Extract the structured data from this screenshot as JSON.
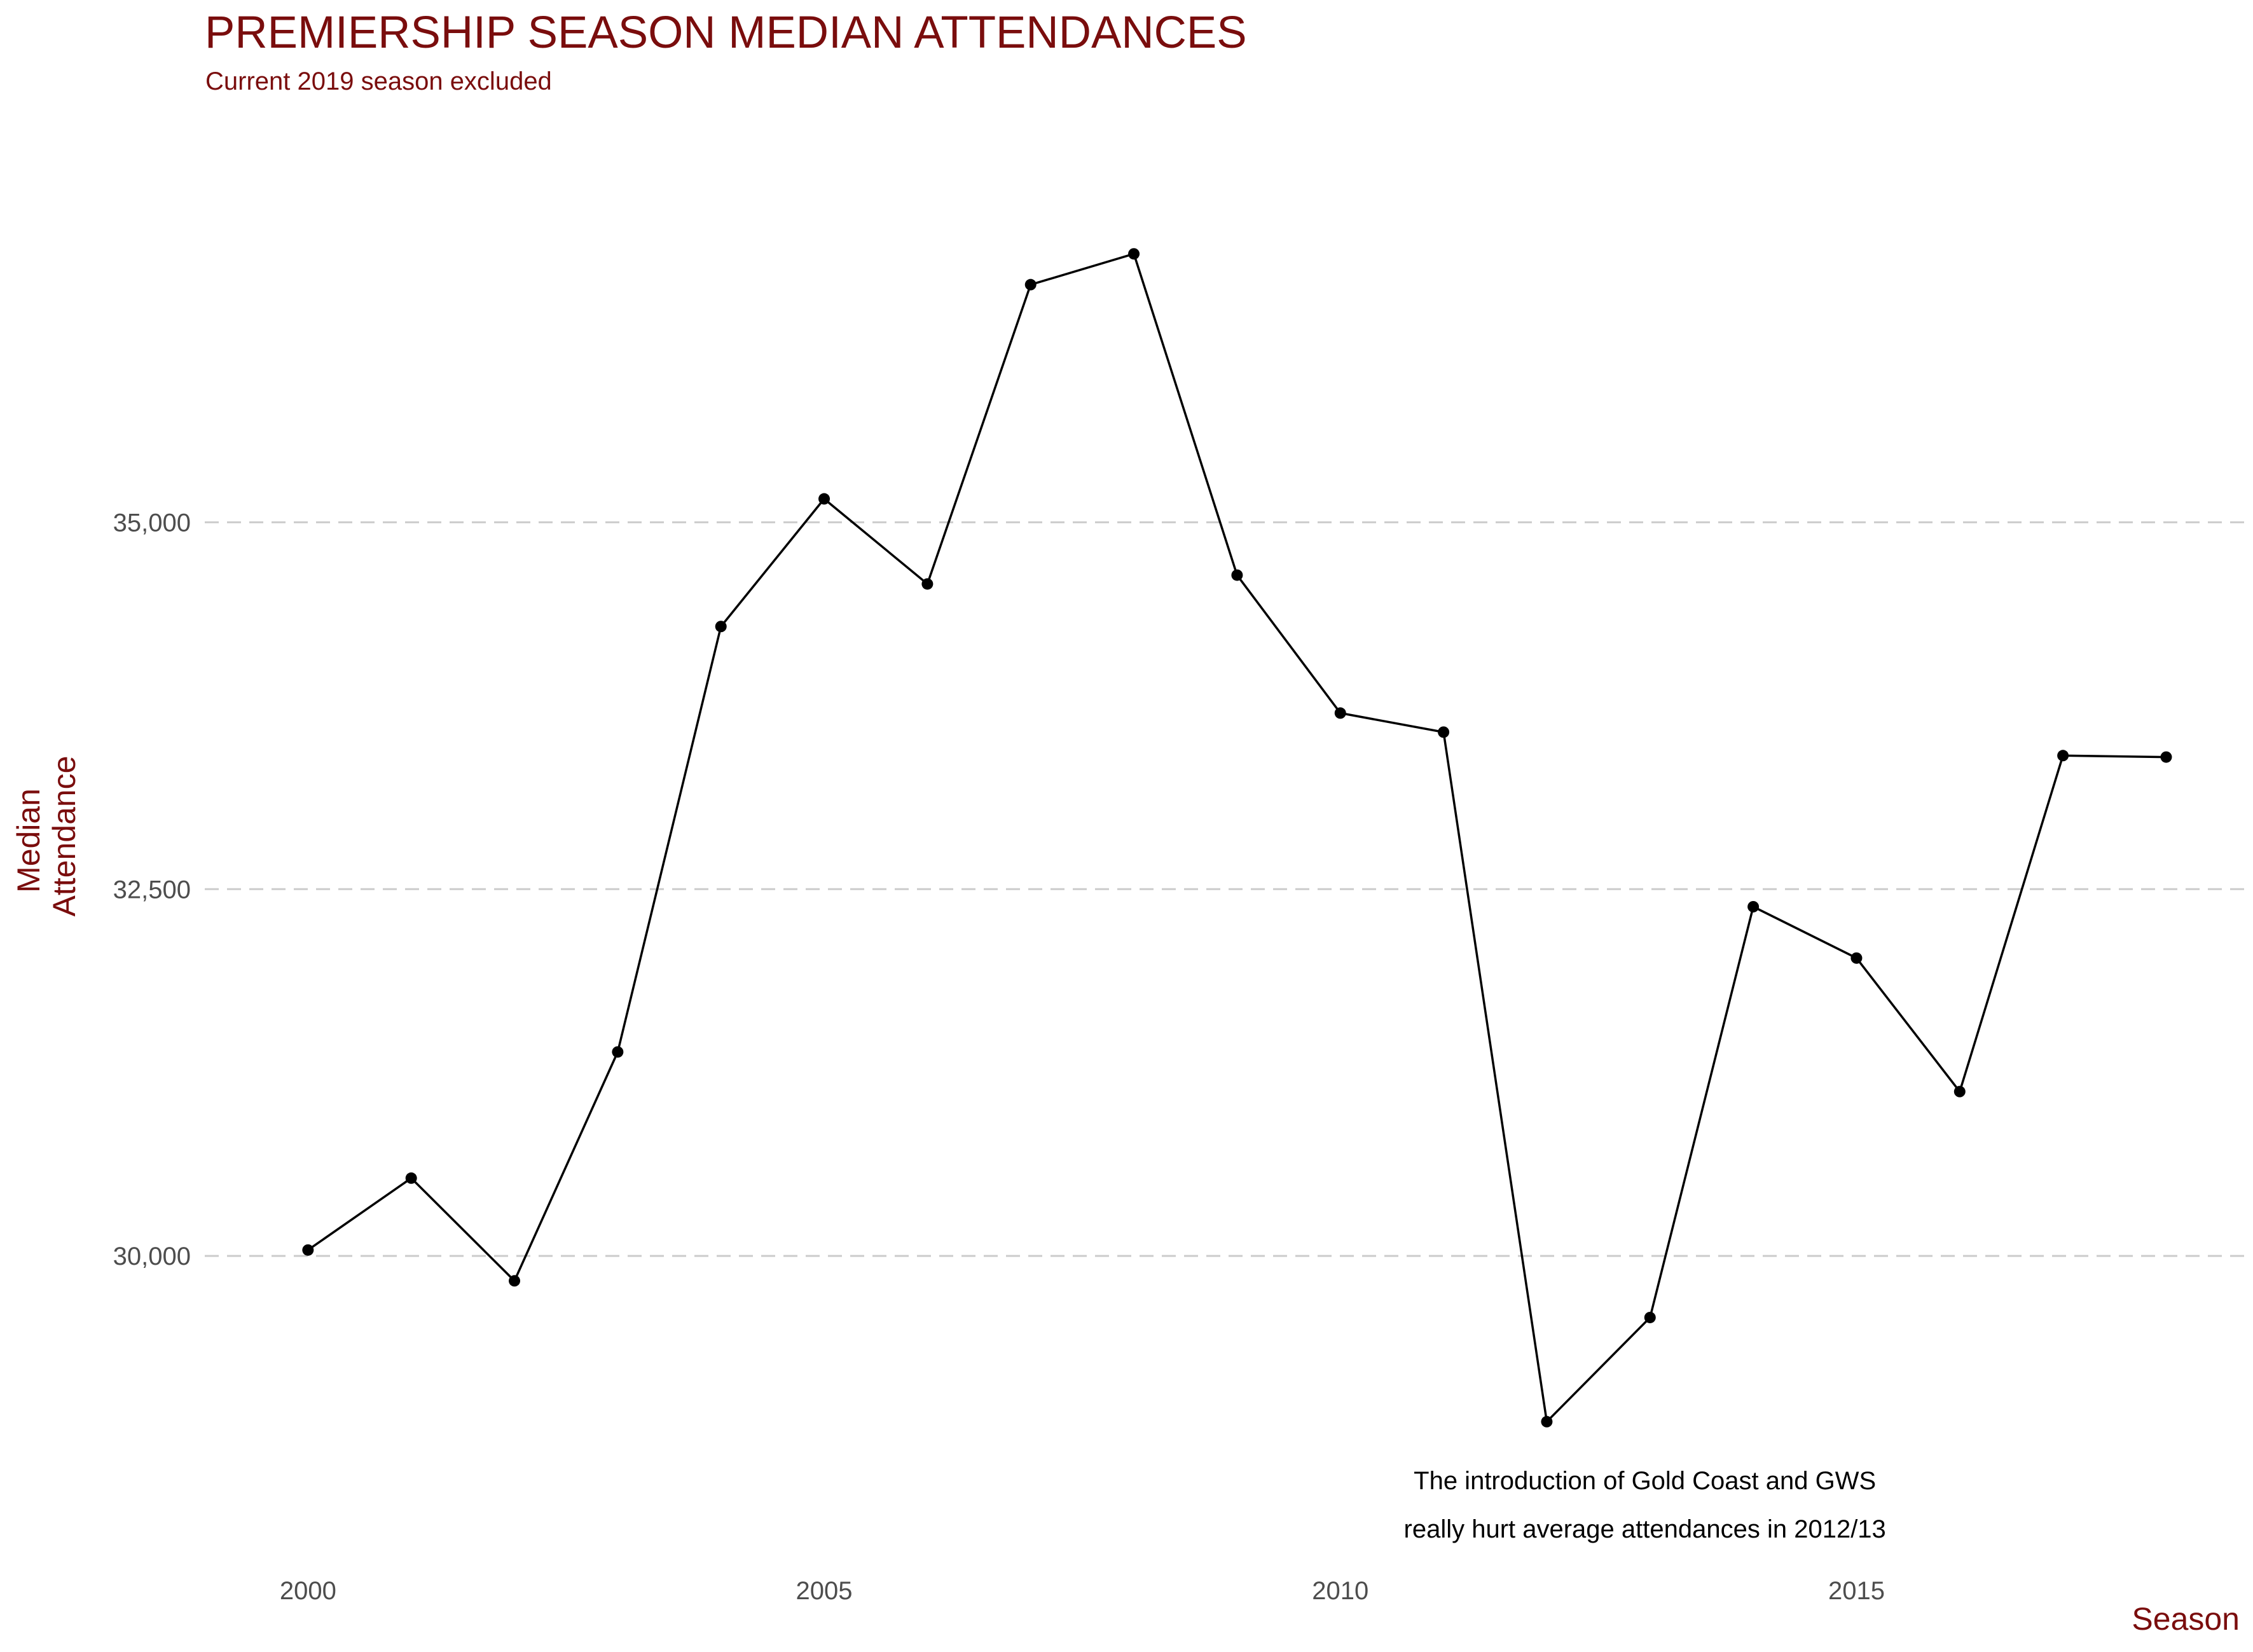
{
  "chart_data": {
    "type": "line",
    "title": "PREMIERSHIP SEASON MEDIAN ATTENDANCES",
    "subtitle": "Current 2019 season excluded",
    "xlabel": "Season",
    "ylabel_lines": [
      "Median",
      "Attendance"
    ],
    "x": [
      2000,
      2001,
      2002,
      2003,
      2004,
      2005,
      2006,
      2007,
      2008,
      2009,
      2010,
      2011,
      2012,
      2013,
      2014,
      2015,
      2016,
      2017,
      2018
    ],
    "series": [
      {
        "values": [
          30040,
          30530,
          29830,
          31390,
          34290,
          35160,
          34580,
          36620,
          36830,
          34640,
          33700,
          33570,
          28870,
          29580,
          32380,
          32030,
          31120,
          33410,
          33400
        ]
      }
    ],
    "xlim": [
      1999.0,
      2018.65
    ],
    "ylim": [
      28180,
      37520
    ],
    "x_ticks": [
      2000,
      2005,
      2010,
      2015
    ],
    "x_tick_labels": [
      "2000",
      "2005",
      "2010",
      "2015"
    ],
    "y_ticks": [
      30000,
      32500,
      35000
    ],
    "y_tick_labels": [
      "30,000",
      "32,500",
      "35,000"
    ],
    "grid": "horizontal major, dashed",
    "legend": "none",
    "line_color": "#000000",
    "text_color": "#7a0d0d",
    "annotation": {
      "lines": [
        "The introduction of Gold Coast and GWS",
        "really hurt average attendances in 2012/13"
      ],
      "x": 2012.95,
      "y_top": 28410,
      "y_bottom": 28080
    }
  }
}
